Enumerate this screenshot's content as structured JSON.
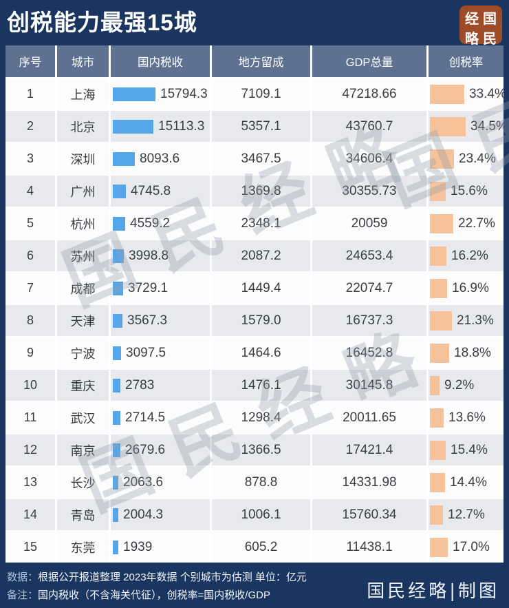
{
  "title": "创税能力最强15城",
  "logo": {
    "name": "国民经略",
    "grid": [
      "经",
      "国",
      "略",
      "民"
    ]
  },
  "watermark": {
    "text": "国民经略"
  },
  "chart_data": {
    "type": "table",
    "title": "创税能力最强15城",
    "unit": "亿元",
    "columns": [
      "序号",
      "城市",
      "国内税收",
      "地方留成",
      "GDP总量",
      "创税率"
    ],
    "bar_columns": {
      "国内税收": "blue-bar",
      "创税率": "orange-bar"
    },
    "rows": [
      [
        "1",
        "上海",
        "15794.3",
        "7109.1",
        "47218.66",
        "33.4%"
      ],
      [
        "2",
        "北京",
        "15113.3",
        "5357.1",
        "43760.7",
        "34.5%"
      ],
      [
        "3",
        "深圳",
        "8093.6",
        "3467.5",
        "34606.4",
        "23.4%"
      ],
      [
        "4",
        "广州",
        "4745.8",
        "1369.8",
        "30355.73",
        "15.6%"
      ],
      [
        "5",
        "杭州",
        "4559.2",
        "2348.1",
        "20059",
        "22.7%"
      ],
      [
        "6",
        "苏州",
        "3998.8",
        "2087.2",
        "24653.4",
        "16.2%"
      ],
      [
        "7",
        "成都",
        "3729.1",
        "1449.4",
        "22074.7",
        "16.9%"
      ],
      [
        "8",
        "天津",
        "3567.3",
        "1579.0",
        "16737.3",
        "21.3%"
      ],
      [
        "9",
        "宁波",
        "3097.5",
        "1464.6",
        "16452.8",
        "18.8%"
      ],
      [
        "10",
        "重庆",
        "2783",
        "1476.1",
        "30145.8",
        "9.2%"
      ],
      [
        "11",
        "武汉",
        "2714.5",
        "1298.4",
        "20011.65",
        "13.6%"
      ],
      [
        "12",
        "南京",
        "2679.6",
        "1366.5",
        "17421.4",
        "15.4%"
      ],
      [
        "13",
        "长沙",
        "2063.6",
        "878.8",
        "14331.98",
        "14.4%"
      ],
      [
        "14",
        "青岛",
        "2004.3",
        "1006.1",
        "15760.34",
        "12.7%"
      ],
      [
        "15",
        "东莞",
        "1939",
        "605.2",
        "11438.1",
        "17.0%"
      ]
    ]
  },
  "footer": {
    "line1_label": "数据：",
    "line1_text": "根据公开报道整理 2023年数据 个别城市为估测  单位：亿元",
    "line2_label": "备注：",
    "line2_text": "国内税收（不含海关代征），创税率=国内税收/GDP",
    "signature": "国民经略|制图"
  },
  "colors": {
    "background": "#1a3560",
    "header_row": "#5e7191",
    "row_even": "#e7e9ec",
    "row_odd": "#fcfcfd",
    "tax_bar": "#55a6e8",
    "rate_bar": "#f5c29a",
    "logo_background": "#9e4b29"
  }
}
